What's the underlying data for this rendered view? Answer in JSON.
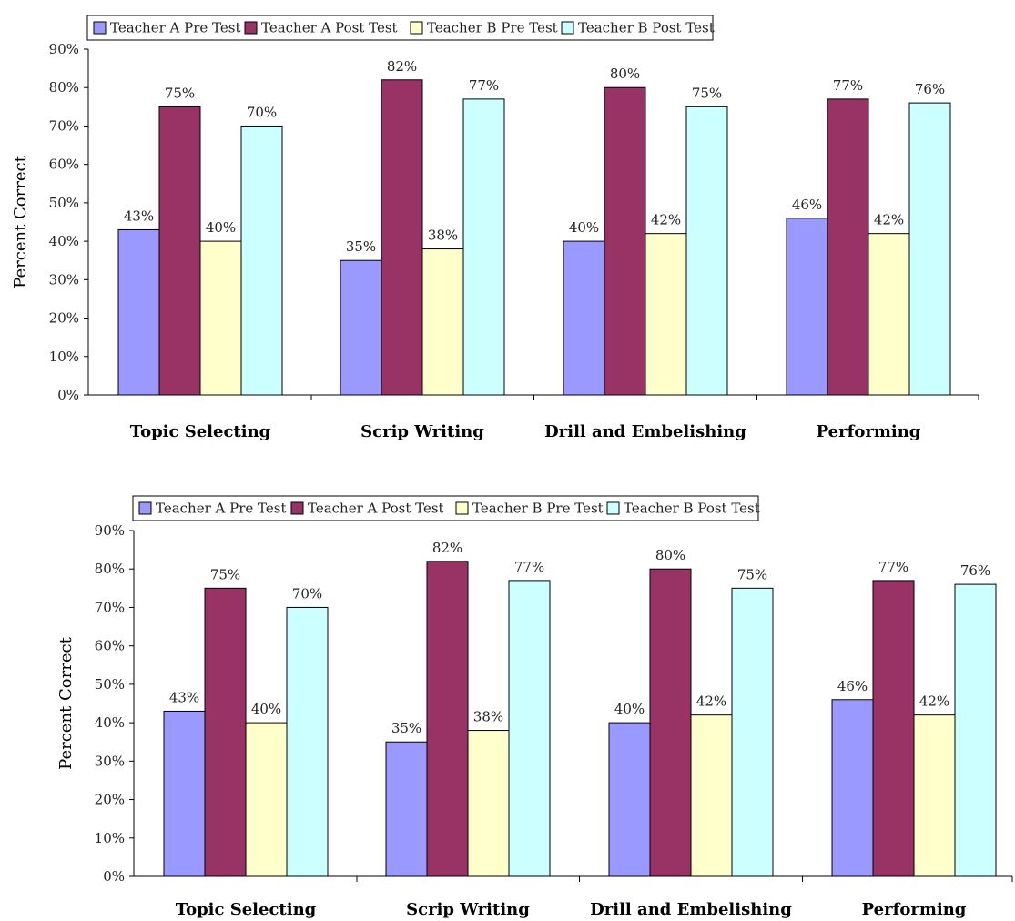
{
  "colors": {
    "Teacher A Pre Test": "#9999ff",
    "Teacher A Post Test": "#993366",
    "Teacher B Pre Test": "#ffffcc",
    "Teacher B Post Test": "#ccffff"
  },
  "chart_data": [
    {
      "type": "bar",
      "categories": [
        "Topic Selecting",
        "Scrip Writing",
        "Drill and Embelishing",
        "Performing"
      ],
      "series": [
        {
          "name": "Teacher A Pre Test",
          "values": [
            43,
            35,
            40,
            46
          ],
          "labels": [
            "43%",
            "35%",
            "40%",
            "46%"
          ]
        },
        {
          "name": "Teacher A Post Test",
          "values": [
            75,
            82,
            80,
            77
          ],
          "labels": [
            "75%",
            "82%",
            "80%",
            "77%"
          ]
        },
        {
          "name": "Teacher B Pre Test",
          "values": [
            40,
            38,
            42,
            42
          ],
          "labels": [
            "40%",
            "38%",
            "42%",
            "42%"
          ]
        },
        {
          "name": "Teacher B Post Test",
          "values": [
            70,
            77,
            75,
            76
          ],
          "labels": [
            "70%",
            "77%",
            "75%",
            "76%"
          ]
        }
      ],
      "ylabel": "Percent Correct",
      "ylim": [
        0,
        90
      ],
      "yticks": [
        "0%",
        "10%",
        "20%",
        "30%",
        "40%",
        "50%",
        "60%",
        "70%",
        "80%",
        "90%"
      ],
      "legend_position": "top-left",
      "grid": false
    },
    {
      "type": "bar",
      "categories": [
        "Topic Selecting",
        "Scrip Writing",
        "Drill and Embelishing",
        "Performing"
      ],
      "series": [
        {
          "name": "Teacher A Pre Test",
          "values": [
            43,
            35,
            40,
            46
          ],
          "labels": [
            "43%",
            "35%",
            "40%",
            "46%"
          ]
        },
        {
          "name": "Teacher A Post Test",
          "values": [
            75,
            82,
            80,
            77
          ],
          "labels": [
            "75%",
            "82%",
            "80%",
            "77%"
          ]
        },
        {
          "name": "Teacher B Pre Test",
          "values": [
            40,
            38,
            42,
            42
          ],
          "labels": [
            "40%",
            "38%",
            "42%",
            "42%"
          ]
        },
        {
          "name": "Teacher B Post Test",
          "values": [
            70,
            77,
            75,
            76
          ],
          "labels": [
            "70%",
            "77%",
            "75%",
            "76%"
          ]
        }
      ],
      "ylabel": "Percent Correct",
      "ylim": [
        0,
        90
      ],
      "yticks": [
        "0%",
        "10%",
        "20%",
        "30%",
        "40%",
        "50%",
        "60%",
        "70%",
        "80%",
        "90%"
      ],
      "legend_position": "top-left",
      "grid": false
    }
  ]
}
